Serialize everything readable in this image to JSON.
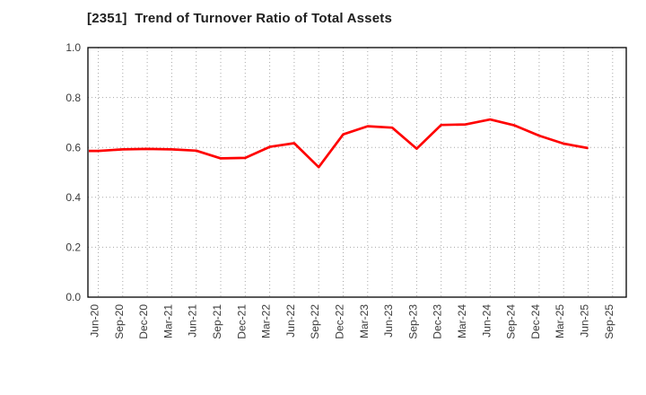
{
  "figure": {
    "background": "#ffffff"
  },
  "style": {
    "line_color": "#ff0000",
    "grid_color": "#a8a8a8",
    "axis_color": "#000000",
    "tick_label_color": "#3a3a3a",
    "title_color": "#1f1f1f"
  },
  "chart_data": {
    "type": "line",
    "title": "[2351]  Trend of Turnover Ratio of Total Assets",
    "xlabel": "",
    "ylabel": "",
    "categories": [
      "Jun-20",
      "Sep-20",
      "Dec-20",
      "Mar-21",
      "Jun-21",
      "Sep-21",
      "Dec-21",
      "Mar-22",
      "Jun-22",
      "Sep-22",
      "Dec-22",
      "Mar-23",
      "Jun-23",
      "Sep-23",
      "Dec-23",
      "Mar-24",
      "Jun-24",
      "Sep-24",
      "Dec-24",
      "Mar-25",
      "Jun-25",
      "Sep-25"
    ],
    "series": [
      {
        "name": "Turnover Ratio of Total Assets",
        "color": "#ff0000",
        "values": [
          0.586,
          0.592,
          0.594,
          0.592,
          0.587,
          0.556,
          0.558,
          0.602,
          0.617,
          0.521,
          0.652,
          0.685,
          0.679,
          0.595,
          0.69,
          0.692,
          0.712,
          0.688,
          0.647,
          0.615,
          0.597,
          null
        ]
      }
    ],
    "ylim": [
      0.0,
      1.0
    ],
    "yticks": [
      0.0,
      0.2,
      0.4,
      0.6,
      0.8,
      1.0
    ],
    "ytick_labels": [
      "0.0",
      "0.2",
      "0.4",
      "0.6",
      "0.8",
      "1.0"
    ],
    "grid": true,
    "grid_style": "dotted",
    "legend": "none",
    "line_starts_at_left_axis": true
  }
}
